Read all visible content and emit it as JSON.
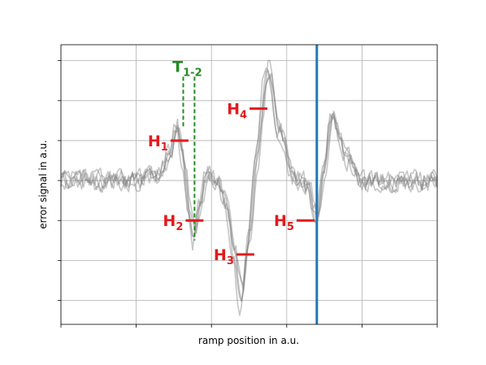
{
  "chart_data": {
    "type": "line",
    "title": "",
    "xlabel": "ramp position in a.u.",
    "ylabel": "error signal in a.u.",
    "xlim": [
      0,
      100
    ],
    "ylim": [
      -3.6,
      3.4
    ],
    "x_ticks": [
      0,
      20,
      40,
      60,
      80,
      100
    ],
    "y_ticks": [
      -3,
      -2,
      -1,
      0,
      1,
      2,
      3
    ],
    "tick_labels_visible": false,
    "grid": true,
    "legend": "none",
    "vertical_line": {
      "x": 68,
      "color": "#1f77b4"
    },
    "series_color": "#808080",
    "series_shape": {
      "x": [
        0,
        20,
        25,
        29,
        31,
        32.5,
        34,
        35.5,
        37,
        38.5,
        40,
        42,
        44,
        46,
        48,
        50,
        52,
        55,
        58,
        62,
        64,
        66,
        67,
        68,
        70,
        72,
        76,
        80,
        100
      ],
      "y": [
        0,
        0,
        0.1,
        0.6,
        1.3,
        0.6,
        -0.7,
        -1.5,
        -0.6,
        0.1,
        0.1,
        -0.1,
        -0.6,
        -1.8,
        -3.1,
        -1.4,
        0.6,
        2.9,
        1.3,
        0.1,
        0.0,
        -0.2,
        -0.7,
        -1.1,
        0.3,
        1.7,
        0.6,
        0.0,
        0.0
      ]
    },
    "series": [
      {
        "noise_seed": 11,
        "x_shift": 0.0,
        "amp": 1.0
      },
      {
        "noise_seed": 23,
        "x_shift": 0.4,
        "amp": 0.95
      },
      {
        "noise_seed": 37,
        "x_shift": -0.4,
        "amp": 1.05
      },
      {
        "noise_seed": 51,
        "x_shift": 0.2,
        "amp": 0.9
      },
      {
        "noise_seed": 67,
        "x_shift": -0.2,
        "amp": 1.0
      }
    ],
    "markers": [
      {
        "label": "H",
        "sub": "1",
        "x": 31.5,
        "y": 1.0
      },
      {
        "label": "H",
        "sub": "2",
        "x": 35.5,
        "y": -1.0
      },
      {
        "label": "H",
        "sub": "3",
        "x": 49,
        "y": -1.85
      },
      {
        "label": "H",
        "sub": "4",
        "x": 52.5,
        "y": 1.8
      },
      {
        "label": "H",
        "sub": "5",
        "x": 65,
        "y": -1.0
      }
    ],
    "marker_color": "#e31a1c",
    "interval": {
      "label": "T",
      "sub": "1-2",
      "x_start": 32.5,
      "x_end": 35.5,
      "y_top": 2.6,
      "y_start_bottom": 1.3,
      "y_end_bottom": -1.5,
      "color": "#228B22"
    }
  }
}
